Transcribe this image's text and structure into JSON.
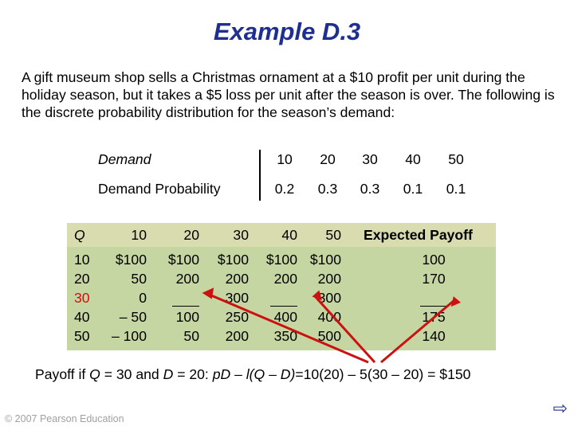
{
  "title": "Example D.3",
  "paragraph": "A gift museum shop sells a Christmas ornament at a $10 profit per unit during the holiday season, but it takes a $5 loss per unit after the season is over. The following is the discrete probability distribution for the season’s demand:",
  "distribution": {
    "demand_label": "Demand",
    "probability_label": "Demand Probability",
    "demand": [
      "10",
      "20",
      "30",
      "40",
      "50"
    ],
    "probability": [
      "0.2",
      "0.3",
      "0.3",
      "0.1",
      "0.1"
    ]
  },
  "payoff_table": {
    "q_header": "Q",
    "d_headers": [
      "10",
      "20",
      "30",
      "40",
      "50"
    ],
    "expected_header": "Expected Payoff",
    "rows": [
      {
        "q": "10",
        "cells": [
          "$100",
          "$100",
          "$100",
          "$100",
          "$100"
        ],
        "expected": "100"
      },
      {
        "q": "20",
        "cells": [
          "50",
          "200",
          "200",
          "200",
          "200"
        ],
        "expected": "170"
      },
      {
        "q": "30",
        "cells": [
          "0",
          "",
          "300",
          "",
          "300"
        ],
        "expected": ""
      },
      {
        "q": "40",
        "cells": [
          "– 50",
          "100",
          "250",
          "400",
          "400"
        ],
        "expected": "175"
      },
      {
        "q": "50",
        "cells": [
          "– 100",
          "50",
          "200",
          "350",
          "500"
        ],
        "expected": "140"
      }
    ],
    "highlight_q_color": "#cc1111"
  },
  "note": {
    "prefix": "Payoff if ",
    "q_var": "Q",
    "mid": " = 30 and ",
    "d_var": "D",
    "mid2": " = 20: ",
    "formula": "pD – l(Q – D)",
    "suffix": "=10(20) – 5(30 – 20) = $150"
  },
  "footer": "© 2007 Pearson Education",
  "next_icon": "next-arrow-icon"
}
